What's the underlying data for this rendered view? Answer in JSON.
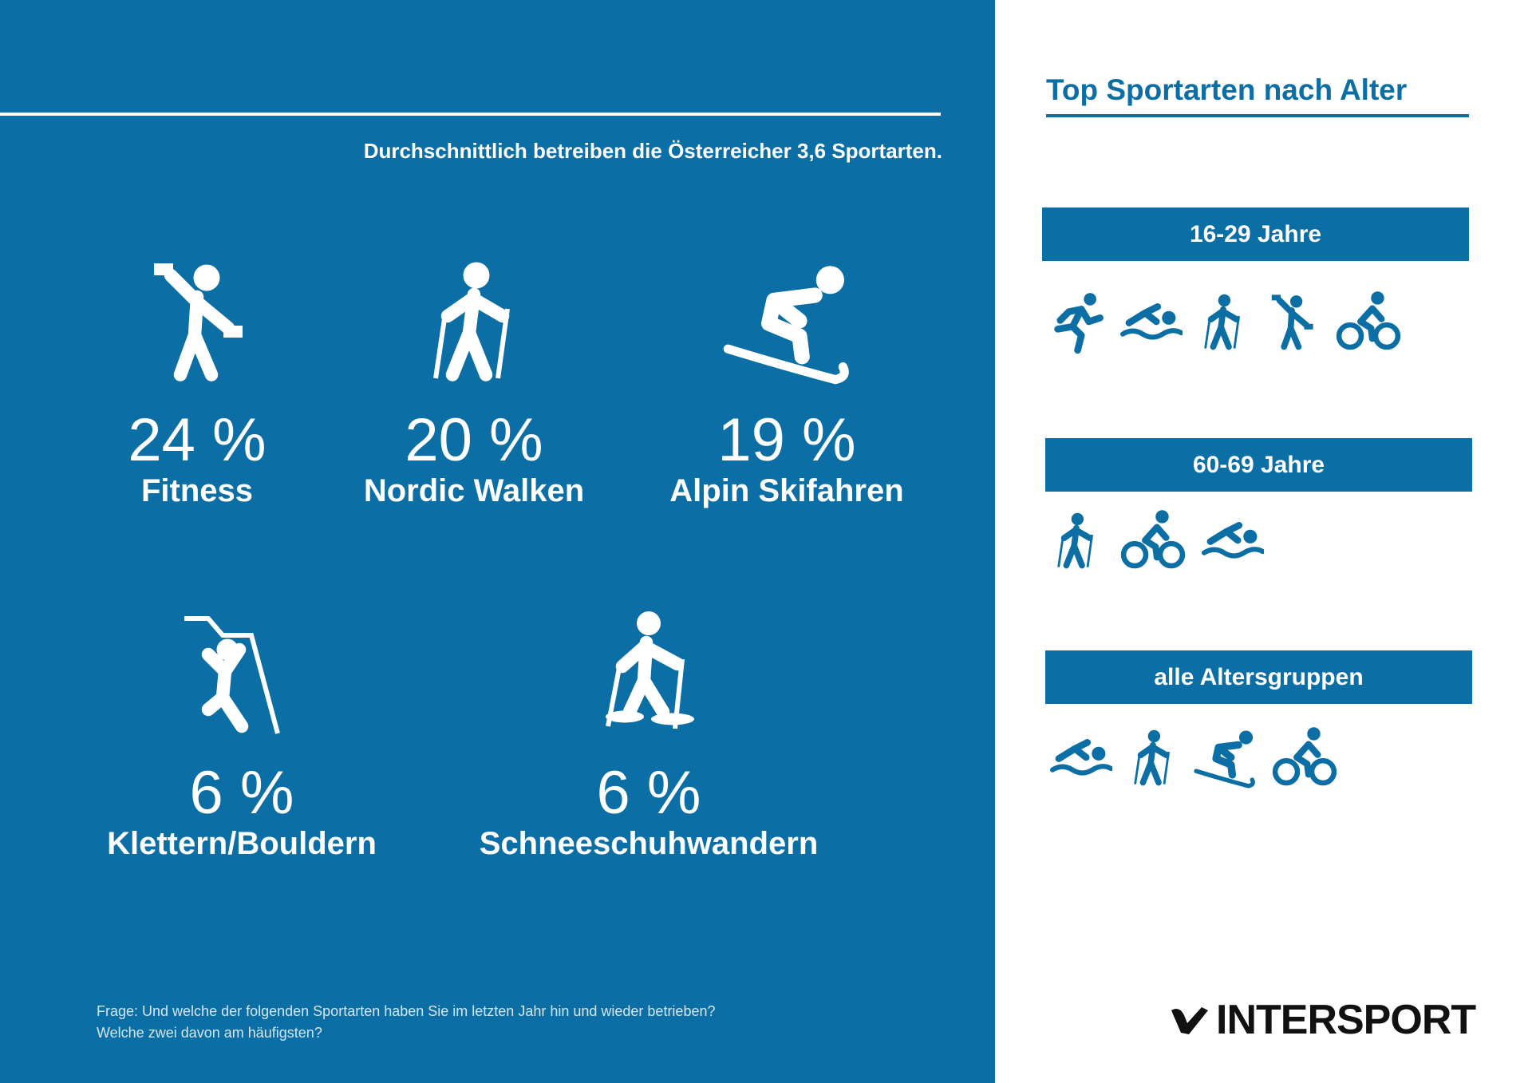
{
  "header": {
    "subtitle": "Durchschnittlich betreiben die Österreicher 3,6 Sportarten."
  },
  "stats": [
    {
      "value": "24 %",
      "label": "Fitness"
    },
    {
      "value": "20 %",
      "label": "Nordic Walken"
    },
    {
      "value": "19 %",
      "label": "Alpin Skifahren"
    },
    {
      "value": "6 %",
      "label": "Klettern/Bouldern"
    },
    {
      "value": "6 %",
      "label": "Schneeschuhwandern"
    }
  ],
  "sidebar": {
    "title": "Top Sportarten nach Alter",
    "groups": [
      {
        "label": "16-29 Jahre"
      },
      {
        "label": "60-69 Jahre"
      },
      {
        "label": "alle Altersgruppen"
      }
    ]
  },
  "footnote": {
    "lines": [
      "Frage: Und welche der folgenden Sportarten haben Sie im letzten Jahr hin und wieder betrieben?",
      "Welche zwei davon am häufigsten?"
    ]
  },
  "logo": {
    "text": "INTERSPORT"
  }
}
